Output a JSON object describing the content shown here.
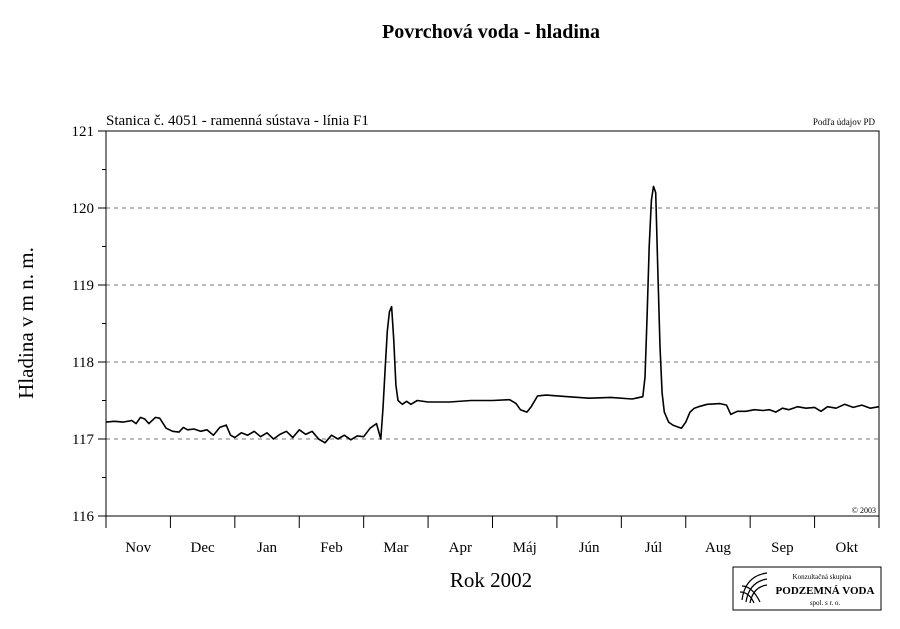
{
  "chart_data": {
    "type": "line",
    "title": "Povrchová voda - hladina",
    "subtitle": "Stanica č. 4051 - ramenná sústava - línia F1",
    "source_note": "Podľa údajov PD",
    "copyright": "© 2003",
    "xlabel": "Rok 2002",
    "ylabel": "Hladina v m n. m.",
    "ylim": [
      116,
      121
    ],
    "yticks": [
      116,
      117,
      118,
      119,
      120,
      121
    ],
    "y_gridlines": [
      117,
      118,
      119,
      120
    ],
    "x_range_days": [
      0,
      360
    ],
    "months": [
      "Nov",
      "Dec",
      "Jan",
      "Feb",
      "Mar",
      "Apr",
      "Máj",
      "Jún",
      "Júl",
      "Aug",
      "Sep",
      "Okt"
    ],
    "grid": true,
    "series": [
      {
        "color": "#000000",
        "points": [
          [
            0,
            117.22
          ],
          [
            4,
            117.23
          ],
          [
            8,
            117.22
          ],
          [
            12,
            117.24
          ],
          [
            14,
            117.2
          ],
          [
            16,
            117.28
          ],
          [
            18,
            117.26
          ],
          [
            20,
            117.2
          ],
          [
            23,
            117.28
          ],
          [
            25,
            117.27
          ],
          [
            28,
            117.14
          ],
          [
            31,
            117.1
          ],
          [
            34,
            117.09
          ],
          [
            36,
            117.15
          ],
          [
            38,
            117.12
          ],
          [
            41,
            117.13
          ],
          [
            44,
            117.1
          ],
          [
            47,
            117.12
          ],
          [
            50,
            117.05
          ],
          [
            53,
            117.15
          ],
          [
            56,
            117.18
          ],
          [
            58,
            117.05
          ],
          [
            60,
            117.02
          ],
          [
            63,
            117.08
          ],
          [
            66,
            117.05
          ],
          [
            69,
            117.1
          ],
          [
            72,
            117.03
          ],
          [
            75,
            117.08
          ],
          [
            78,
            117.0
          ],
          [
            81,
            117.06
          ],
          [
            84,
            117.1
          ],
          [
            87,
            117.02
          ],
          [
            90,
            117.12
          ],
          [
            93,
            117.06
          ],
          [
            96,
            117.1
          ],
          [
            99,
            117.0
          ],
          [
            102,
            116.95
          ],
          [
            105,
            117.05
          ],
          [
            108,
            117.0
          ],
          [
            111,
            117.05
          ],
          [
            114,
            116.99
          ],
          [
            117,
            117.04
          ],
          [
            120,
            117.03
          ],
          [
            123,
            117.14
          ],
          [
            126,
            117.2
          ],
          [
            128,
            117.0
          ],
          [
            129,
            117.4
          ],
          [
            130,
            117.9
          ],
          [
            131,
            118.4
          ],
          [
            132,
            118.65
          ],
          [
            133,
            118.72
          ],
          [
            134,
            118.3
          ],
          [
            135,
            117.7
          ],
          [
            136,
            117.5
          ],
          [
            138,
            117.45
          ],
          [
            140,
            117.49
          ],
          [
            142,
            117.45
          ],
          [
            145,
            117.5
          ],
          [
            150,
            117.48
          ],
          [
            160,
            117.48
          ],
          [
            170,
            117.5
          ],
          [
            180,
            117.5
          ],
          [
            188,
            117.51
          ],
          [
            191,
            117.46
          ],
          [
            193,
            117.38
          ],
          [
            196,
            117.35
          ],
          [
            198,
            117.42
          ],
          [
            201,
            117.56
          ],
          [
            205,
            117.57
          ],
          [
            215,
            117.55
          ],
          [
            225,
            117.53
          ],
          [
            235,
            117.54
          ],
          [
            245,
            117.52
          ],
          [
            250,
            117.55
          ],
          [
            251,
            117.8
          ],
          [
            252,
            118.6
          ],
          [
            253,
            119.5
          ],
          [
            254,
            120.1
          ],
          [
            255,
            120.28
          ],
          [
            256,
            120.2
          ],
          [
            257,
            119.2
          ],
          [
            258,
            118.2
          ],
          [
            259,
            117.6
          ],
          [
            260,
            117.35
          ],
          [
            262,
            117.22
          ],
          [
            264,
            117.18
          ],
          [
            266,
            117.16
          ],
          [
            268,
            117.14
          ],
          [
            270,
            117.22
          ],
          [
            272,
            117.35
          ],
          [
            274,
            117.4
          ],
          [
            276,
            117.42
          ],
          [
            280,
            117.45
          ],
          [
            286,
            117.46
          ],
          [
            289,
            117.44
          ],
          [
            291,
            117.32
          ],
          [
            294,
            117.36
          ],
          [
            298,
            117.36
          ],
          [
            302,
            117.38
          ],
          [
            306,
            117.37
          ],
          [
            309,
            117.38
          ],
          [
            312,
            117.35
          ],
          [
            315,
            117.4
          ],
          [
            318,
            117.38
          ],
          [
            322,
            117.42
          ],
          [
            326,
            117.4
          ],
          [
            330,
            117.41
          ],
          [
            333,
            117.36
          ],
          [
            336,
            117.42
          ],
          [
            340,
            117.4
          ],
          [
            344,
            117.45
          ],
          [
            348,
            117.41
          ],
          [
            352,
            117.44
          ],
          [
            356,
            117.4
          ],
          [
            360,
            117.42
          ]
        ]
      }
    ]
  },
  "logo": {
    "line1": "Konzultačná skupina",
    "line2": "PODZEMNÁ VODA",
    "line3": "spol. s r. o."
  }
}
